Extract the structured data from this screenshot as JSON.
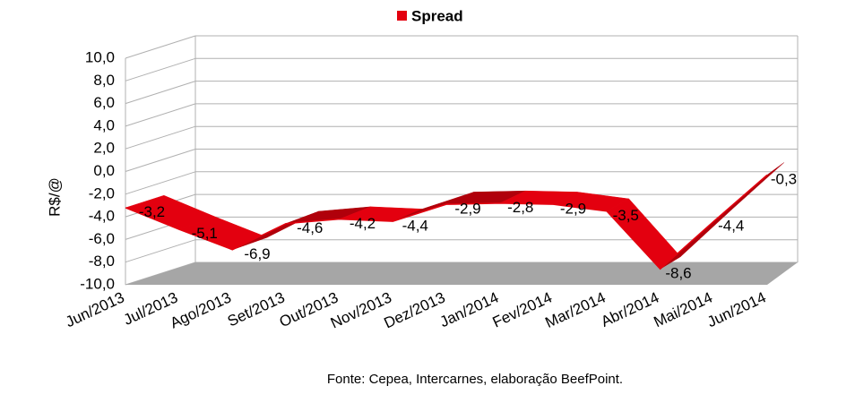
{
  "chart_data": {
    "type": "line",
    "title": "Spread",
    "y_label": "R$/@",
    "source": "Fonte: Cepea, Intercarnes, elaboração BeefPoint.",
    "categories": [
      "Jun/2013",
      "Jul/2013",
      "Ago/2013",
      "Set/2013",
      "Out/2013",
      "Nov/2013",
      "Dez/2013",
      "Jan/2014",
      "Fev/2014",
      "Mar/2014",
      "Abr/2014",
      "Mai/2014",
      "Jun/2014"
    ],
    "series": [
      {
        "name": "Spread",
        "color": "#e3000f",
        "values": [
          -3.2,
          -5.1,
          -6.9,
          -4.6,
          -4.2,
          -4.4,
          -2.9,
          -2.8,
          -2.9,
          -3.5,
          -8.6,
          -4.4,
          -0.3
        ],
        "value_labels": [
          "-3,2",
          "-5,1",
          "-6,9",
          "-4,6",
          "-4,2",
          "-4,4",
          "-2,9",
          "-2,8",
          "-2,9",
          "-3,5",
          "-8,6",
          "-4,4",
          "-0,3"
        ]
      }
    ],
    "ylim": [
      -10,
      10
    ],
    "yticks": [
      {
        "value": -10,
        "label": "-10,0"
      },
      {
        "value": -8,
        "label": "-8,0"
      },
      {
        "value": -6,
        "label": "-6,0"
      },
      {
        "value": -4,
        "label": "-4,0"
      },
      {
        "value": -2,
        "label": "-2,0"
      },
      {
        "value": 0,
        "label": "0,0"
      },
      {
        "value": 2,
        "label": "2,0"
      },
      {
        "value": 4,
        "label": "4,0"
      },
      {
        "value": 6,
        "label": "6,0"
      },
      {
        "value": 8,
        "label": "8,0"
      },
      {
        "value": 10,
        "label": "10,0"
      }
    ],
    "grid": true
  }
}
